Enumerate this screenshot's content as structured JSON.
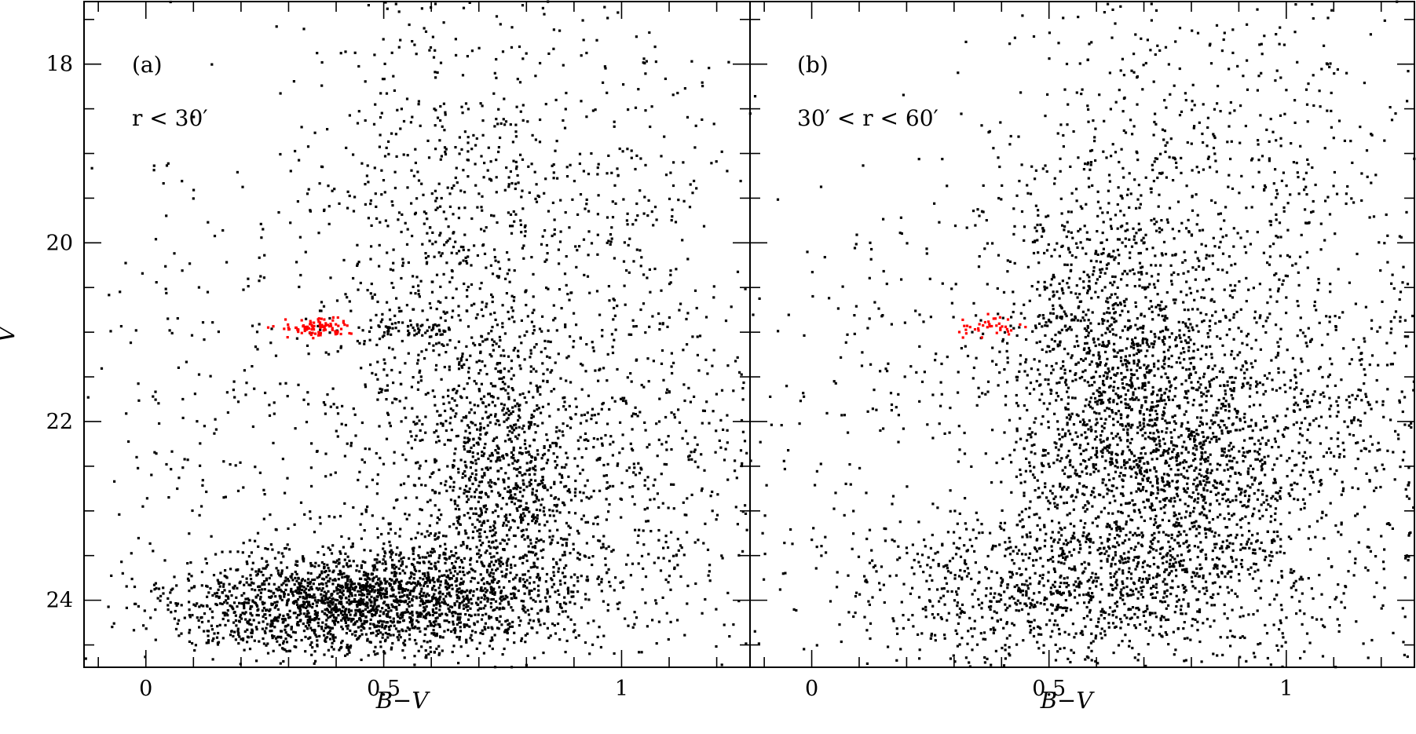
{
  "chart_data": [
    {
      "type": "scatter",
      "panel_label": "(a)",
      "annotation": "r < 30′",
      "xlabel": "B−V",
      "ylabel": "V",
      "xlim": [
        -0.13,
        1.27
      ],
      "ylim": [
        24.75,
        17.3
      ],
      "y_inverted": true,
      "grid": false,
      "xticks": [
        {
          "value": 0,
          "label": "0"
        },
        {
          "value": 0.5,
          "label": "0.5"
        },
        {
          "value": 1,
          "label": "1"
        }
      ],
      "yticks": [
        {
          "value": 18,
          "label": "18"
        },
        {
          "value": 20,
          "label": "20"
        },
        {
          "value": 22,
          "label": "22"
        },
        {
          "value": 24,
          "label": "24"
        }
      ],
      "series": [
        {
          "marker_color": "#000000",
          "description_visible": "field/cluster stars",
          "distribution": {
            "seed": 11,
            "components": [
              {
                "count": 1400,
                "cx": 0.38,
                "cy": 24.05,
                "sx": 0.16,
                "sy": 0.28
              },
              {
                "count": 900,
                "cx": 0.62,
                "cy": 23.9,
                "sx": 0.18,
                "sy": 0.35
              },
              {
                "count": 700,
                "cx": 0.76,
                "cy": 22.6,
                "sx": 0.08,
                "sy": 0.75
              },
              {
                "count": 800,
                "cx": 0.6,
                "cy": 20.7,
                "sx": 0.13,
                "sy": 1.8
              },
              {
                "count": 700,
                "cx": 0.9,
                "cy": 20.3,
                "sx": 0.22,
                "sy": 1.9
              },
              {
                "count": 500,
                "cx": 1.0,
                "cy": 22.8,
                "sx": 0.22,
                "sy": 1.0
              },
              {
                "count": 60,
                "cx": 0.55,
                "cy": 20.98,
                "sx": 0.05,
                "sy": 0.06
              },
              {
                "count": 260,
                "cx": 0.15,
                "cy": 21.8,
                "sx": 0.2,
                "sy": 1.7
              }
            ]
          }
        },
        {
          "marker_color": "#ff0000",
          "description_visible": "horizontal branch stars",
          "distribution": {
            "seed": 5,
            "components": [
              {
                "count": 95,
                "cx": 0.37,
                "cy": 20.95,
                "sx": 0.035,
                "sy": 0.05
              }
            ]
          }
        }
      ]
    },
    {
      "type": "scatter",
      "panel_label": "(b)",
      "annotation": "30′ < r < 60′",
      "xlabel": "B−V",
      "ylabel": "",
      "xlim": [
        -0.13,
        1.27
      ],
      "ylim": [
        24.75,
        17.3
      ],
      "y_inverted": true,
      "grid": false,
      "xticks": [
        {
          "value": 0,
          "label": "0"
        },
        {
          "value": 0.5,
          "label": "0.5"
        },
        {
          "value": 1,
          "label": "1"
        }
      ],
      "yticks": [
        {
          "value": 18,
          "label": ""
        },
        {
          "value": 20,
          "label": ""
        },
        {
          "value": 22,
          "label": ""
        },
        {
          "value": 24,
          "label": ""
        }
      ],
      "series": [
        {
          "marker_color": "#000000",
          "description_visible": "field/cluster stars",
          "distribution": {
            "seed": 29,
            "components": [
              {
                "count": 1500,
                "cx": 0.62,
                "cy": 21.6,
                "sx": 0.12,
                "sy": 1.2
              },
              {
                "count": 900,
                "cx": 0.8,
                "cy": 22.6,
                "sx": 0.12,
                "sy": 0.9
              },
              {
                "count": 900,
                "cx": 0.5,
                "cy": 23.9,
                "sx": 0.22,
                "sy": 0.4
              },
              {
                "count": 900,
                "cx": 0.85,
                "cy": 19.5,
                "sx": 0.25,
                "sy": 1.7
              },
              {
                "count": 700,
                "cx": 1.05,
                "cy": 22.5,
                "sx": 0.2,
                "sy": 1.3
              },
              {
                "count": 220,
                "cx": 0.15,
                "cy": 22.0,
                "sx": 0.2,
                "sy": 1.6
              }
            ]
          }
        },
        {
          "marker_color": "#ff0000",
          "description_visible": "horizontal branch stars",
          "distribution": {
            "seed": 7,
            "components": [
              {
                "count": 38,
                "cx": 0.37,
                "cy": 20.93,
                "sx": 0.03,
                "sy": 0.07
              }
            ]
          }
        }
      ]
    }
  ]
}
